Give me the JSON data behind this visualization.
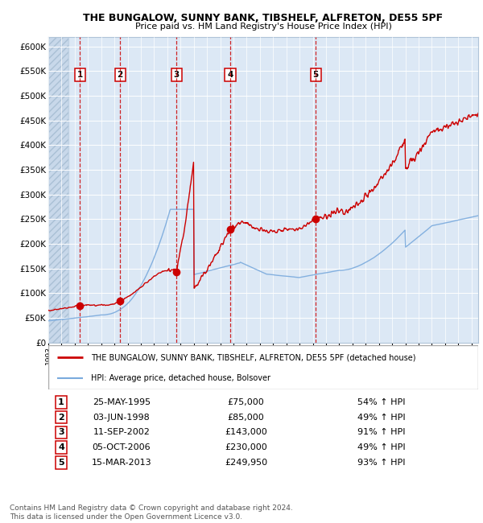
{
  "title": "THE BUNGALOW, SUNNY BANK, TIBSHELF, ALFRETON, DE55 5PF",
  "subtitle": "Price paid vs. HM Land Registry's House Price Index (HPI)",
  "bg_color": "#dce8f5",
  "ylim": [
    0,
    620000
  ],
  "yticks": [
    0,
    50000,
    100000,
    150000,
    200000,
    250000,
    300000,
    350000,
    400000,
    450000,
    500000,
    550000,
    600000
  ],
  "ytick_labels": [
    "£0",
    "£50K",
    "£100K",
    "£150K",
    "£200K",
    "£250K",
    "£300K",
    "£350K",
    "£400K",
    "£450K",
    "£500K",
    "£550K",
    "£600K"
  ],
  "xlim_start": 1993.0,
  "xlim_end": 2025.5,
  "sale_dates": [
    1995.39,
    1998.42,
    2002.69,
    2006.76,
    2013.21
  ],
  "sale_prices": [
    75000,
    85000,
    143000,
    230000,
    249950
  ],
  "sale_labels": [
    "1",
    "2",
    "3",
    "4",
    "5"
  ],
  "red_line_color": "#cc0000",
  "blue_line_color": "#7aaadd",
  "legend_label_red": "THE BUNGALOW, SUNNY BANK, TIBSHELF, ALFRETON, DE55 5PF (detached house)",
  "legend_label_blue": "HPI: Average price, detached house, Bolsover",
  "footer_text": "Contains HM Land Registry data © Crown copyright and database right 2024.\nThis data is licensed under the Open Government Licence v3.0.",
  "table_rows": [
    [
      "1",
      "25-MAY-1995",
      "£75,000",
      "54% ↑ HPI"
    ],
    [
      "2",
      "03-JUN-1998",
      "£85,000",
      "49% ↑ HPI"
    ],
    [
      "3",
      "11-SEP-2002",
      "£143,000",
      "91% ↑ HPI"
    ],
    [
      "4",
      "05-OCT-2006",
      "£230,000",
      "49% ↑ HPI"
    ],
    [
      "5",
      "15-MAR-2013",
      "£249,950",
      "93% ↑ HPI"
    ]
  ]
}
